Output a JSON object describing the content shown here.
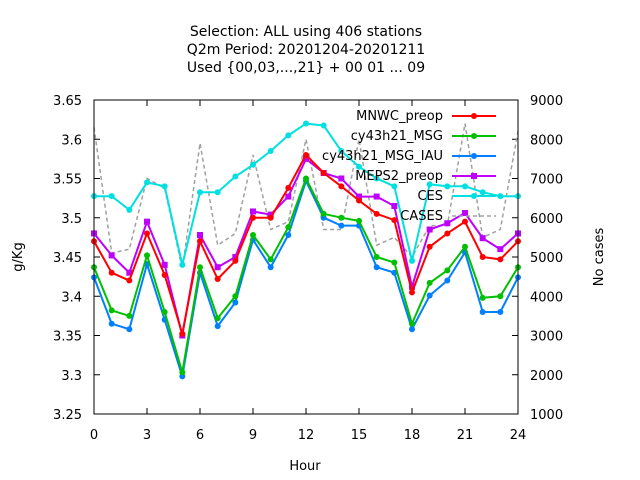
{
  "chart_data": {
    "type": "line",
    "title_lines": [
      "Selection: ALL using   406 stations",
      "Q2m   Period: 20201204-20201211",
      "Used {00,03,...,21} + 00 01 ... 09"
    ],
    "xlabel": "Hour",
    "ylabel": "g/Kg",
    "y2label": "No cases",
    "xlim": [
      0,
      24
    ],
    "ylim": [
      3.25,
      3.65
    ],
    "y2lim": [
      1000,
      9000
    ],
    "xticks": [
      "0",
      "3",
      "6",
      "9",
      "12",
      "15",
      "18",
      "21",
      "24"
    ],
    "yticks": [
      "3.25",
      "3.3",
      "3.35",
      "3.4",
      "3.45",
      "3.5",
      "3.55",
      "3.6",
      "3.65"
    ],
    "y2ticks": [
      "1000",
      "2000",
      "3000",
      "4000",
      "5000",
      "6000",
      "7000",
      "8000",
      "9000"
    ],
    "legend_position": "top-right",
    "x": [
      0,
      1,
      2,
      3,
      4,
      5,
      6,
      7,
      8,
      9,
      10,
      11,
      12,
      13,
      14,
      15,
      16,
      17,
      18,
      19,
      20,
      21,
      22,
      23,
      24
    ],
    "series": [
      {
        "name": "MNWC_preop",
        "color": "#ff0000",
        "marker": "circle",
        "axis": "y",
        "values": [
          3.47,
          3.43,
          3.42,
          3.48,
          3.427,
          3.352,
          3.47,
          3.422,
          3.445,
          3.5,
          3.5,
          3.538,
          3.58,
          3.557,
          3.54,
          3.522,
          3.505,
          3.497,
          3.405,
          3.463,
          3.48,
          3.495,
          3.45,
          3.447,
          3.47
        ]
      },
      {
        "name": "cy43h21_MSG",
        "color": "#00c000",
        "marker": "circle",
        "axis": "y",
        "values": [
          3.437,
          3.382,
          3.375,
          3.452,
          3.38,
          3.303,
          3.437,
          3.372,
          3.4,
          3.478,
          3.447,
          3.488,
          3.55,
          3.505,
          3.5,
          3.496,
          3.45,
          3.443,
          3.365,
          3.417,
          3.433,
          3.463,
          3.398,
          3.4,
          3.437
        ]
      },
      {
        "name": "cy43h21_MSG_IAU",
        "color": "#0080ff",
        "marker": "circle",
        "axis": "y",
        "values": [
          3.424,
          3.365,
          3.358,
          3.441,
          3.37,
          3.298,
          3.43,
          3.362,
          3.392,
          3.472,
          3.437,
          3.478,
          3.547,
          3.5,
          3.49,
          3.49,
          3.437,
          3.43,
          3.358,
          3.401,
          3.42,
          3.456,
          3.38,
          3.38,
          3.424
        ]
      },
      {
        "name": "MEPS2_preop",
        "color": "#c000ff",
        "marker": "square",
        "axis": "y",
        "values": [
          3.48,
          3.452,
          3.43,
          3.495,
          3.44,
          3.35,
          3.478,
          3.437,
          3.45,
          3.508,
          3.504,
          3.527,
          3.575,
          3.557,
          3.55,
          3.527,
          3.527,
          3.515,
          3.412,
          3.485,
          3.493,
          3.506,
          3.474,
          3.46,
          3.48
        ]
      },
      {
        "name": "CES",
        "color": "#00e0e0",
        "marker": "circle",
        "axis": "y2",
        "values": [
          6550,
          6550,
          6200,
          6900,
          6800,
          4800,
          6650,
          6650,
          7050,
          7350,
          7700,
          8100,
          8400,
          8350,
          7700,
          7300,
          7000,
          6800,
          4900,
          6850,
          6800,
          6800,
          6650,
          6550,
          6550
        ]
      },
      {
        "name": "CASES",
        "color": "#a0a0a0",
        "marker": "none",
        "dash": true,
        "axis": "y2",
        "values": [
          8300,
          5100,
          5200,
          7000,
          6750,
          4700,
          7900,
          5300,
          5600,
          7600,
          5700,
          5900,
          8000,
          5700,
          5700,
          8000,
          5300,
          5500,
          5000,
          5800,
          5800,
          8400,
          5500,
          5700,
          8200
        ]
      }
    ]
  }
}
